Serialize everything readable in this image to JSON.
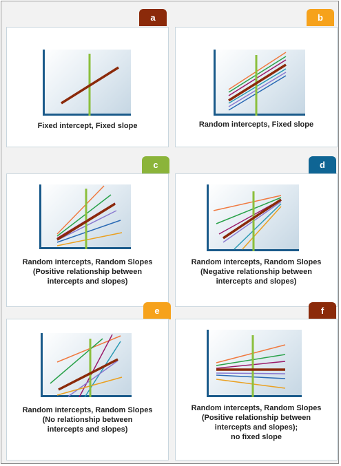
{
  "colors": {
    "tab_a": "#8b2a0a",
    "tab_b": "#f6a21c",
    "tab_c": "#8bb43a",
    "tab_d": "#0f6594",
    "tab_e": "#f6a21c",
    "tab_f": "#8b2a0a",
    "mean_line": "#8b2a0a",
    "intercept_marker": "#8bbf3c",
    "line_palette": [
      "#f07a40",
      "#2aa24a",
      "#9a1a6a",
      "#2a9ab4",
      "#8a7ad0",
      "#2a6ab4",
      "#eaa020"
    ]
  },
  "panels": [
    {
      "id": "a",
      "tab_label": "a",
      "caption_lines": [
        "Fixed intercept, Fixed slope"
      ]
    },
    {
      "id": "b",
      "tab_label": "b",
      "caption_lines": [
        "Random intercepts, Fixed slope"
      ]
    },
    {
      "id": "c",
      "tab_label": "c",
      "caption_lines": [
        "Random intercepts, Random Slopes",
        "(Positive relationship between",
        "intercepts and slopes)"
      ]
    },
    {
      "id": "d",
      "tab_label": "d",
      "caption_lines": [
        "Random intercepts, Random Slopes",
        "(Negative relationship between",
        "intercepts and slopes)"
      ]
    },
    {
      "id": "e",
      "tab_label": "e",
      "caption_lines": [
        "Random intercepts, Random Slopes",
        "(No relationship between",
        "intercepts and slopes)"
      ]
    },
    {
      "id": "f",
      "tab_label": "f",
      "caption_lines": [
        "Random intercepts, Random Slopes",
        "(Positive relationship between",
        "intercepts and slopes);",
        "no fixed slope"
      ]
    }
  ]
}
